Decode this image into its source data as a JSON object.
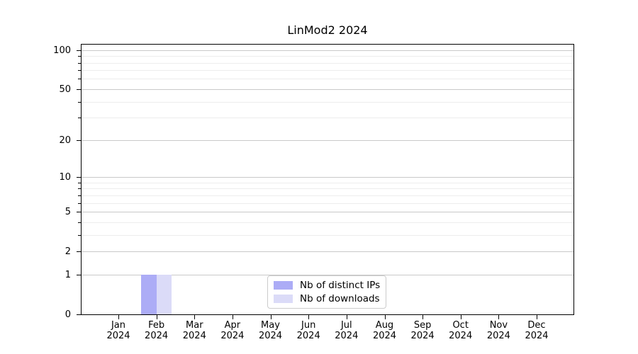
{
  "chart_data": {
    "type": "bar",
    "title": "LinMod2 2024",
    "x_tick_months": [
      "Jan",
      "Feb",
      "Mar",
      "Apr",
      "May",
      "Jun",
      "Jul",
      "Aug",
      "Sep",
      "Oct",
      "Nov",
      "Dec"
    ],
    "x_tick_year": "2024",
    "series": [
      {
        "name": "Nb of distinct IPs",
        "color": "#acacf6",
        "values": [
          0,
          1,
          0,
          0,
          0,
          0,
          0,
          0,
          0,
          0,
          0,
          0
        ]
      },
      {
        "name": "Nb of downloads",
        "color": "#dbdbf8",
        "values": [
          0,
          1,
          0,
          0,
          0,
          0,
          0,
          0,
          0,
          0,
          0,
          0
        ]
      }
    ],
    "y_scale": "log1p",
    "y_major_ticks": [
      0,
      1,
      2,
      5,
      10,
      20,
      50,
      100
    ],
    "y_minor_ticks": [
      3,
      4,
      6,
      7,
      8,
      9,
      30,
      40,
      60,
      70,
      80,
      90
    ],
    "ylim": [
      0,
      110
    ],
    "xlabel": "",
    "ylabel": "",
    "grid": "horizontal-only",
    "legend_position": "lower-center-inside"
  },
  "colors": {
    "axis": "#000000",
    "grid_major": "#c9c9c9",
    "grid_minor": "#ededed",
    "legend_border": "#cccccc",
    "background": "#ffffff",
    "text": "#000000"
  }
}
